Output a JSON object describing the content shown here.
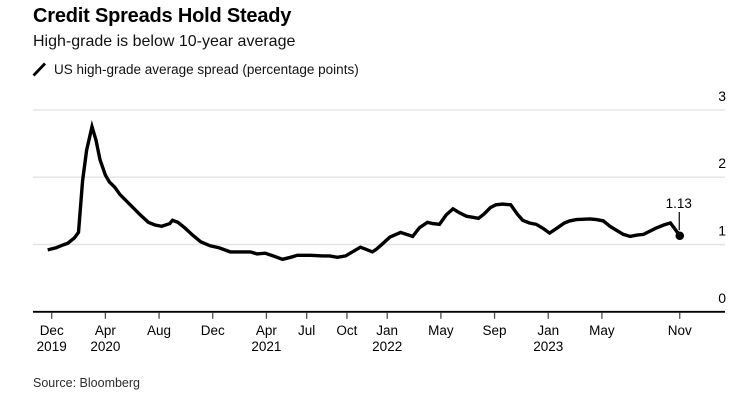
{
  "header": {
    "title": "Credit Spreads Hold Steady",
    "subtitle": "High-grade is below 10-year average",
    "legend_label": "US high-grade average spread (percentage points)"
  },
  "footer": {
    "source": "Source: Bloomberg"
  },
  "colors": {
    "line": "#000000",
    "grid": "#e3e3e3",
    "axis": "#000000",
    "tick": "#4d4d4d",
    "text": "#000000"
  },
  "chart_data": {
    "type": "line",
    "title": "Credit Spreads Hold Steady",
    "subtitle": "High-grade is below 10-year average",
    "series_name": "US high-grade average spread (percentage points)",
    "x_unit": "months since Dec 2019",
    "x_range_note": "Nov 2019 through Nov 2023",
    "ylim": [
      0,
      3
    ],
    "yticks": [
      0,
      1,
      2,
      3
    ],
    "ylabel_side": "right",
    "grid": true,
    "legend_position": "top-left",
    "xticks": [
      {
        "m": 0,
        "label": "Dec",
        "year": "2019"
      },
      {
        "m": 4,
        "label": "Apr",
        "year": "2020"
      },
      {
        "m": 8,
        "label": "Aug"
      },
      {
        "m": 12,
        "label": "Dec"
      },
      {
        "m": 16,
        "label": "Apr",
        "year": "2021"
      },
      {
        "m": 19,
        "label": "Jul"
      },
      {
        "m": 22,
        "label": "Oct"
      },
      {
        "m": 25,
        "label": "Jan",
        "year": "2022"
      },
      {
        "m": 29,
        "label": "May"
      },
      {
        "m": 33,
        "label": "Sep"
      },
      {
        "m": 37,
        "label": "Jan",
        "year": "2023"
      },
      {
        "m": 41,
        "label": "May"
      },
      {
        "m": 46.8,
        "label": "Nov"
      }
    ],
    "points": [
      [
        -0.3,
        0.92
      ],
      [
        0.3,
        0.95
      ],
      [
        0.8,
        0.99
      ],
      [
        1.2,
        1.02
      ],
      [
        1.7,
        1.1
      ],
      [
        2.0,
        1.18
      ],
      [
        2.3,
        1.95
      ],
      [
        2.6,
        2.4
      ],
      [
        3.0,
        2.75
      ],
      [
        3.3,
        2.55
      ],
      [
        3.6,
        2.26
      ],
      [
        4.0,
        2.03
      ],
      [
        4.3,
        1.93
      ],
      [
        4.7,
        1.85
      ],
      [
        5.1,
        1.74
      ],
      [
        5.5,
        1.66
      ],
      [
        6.1,
        1.54
      ],
      [
        6.6,
        1.44
      ],
      [
        7.2,
        1.33
      ],
      [
        7.7,
        1.29
      ],
      [
        8.2,
        1.27
      ],
      [
        8.8,
        1.31
      ],
      [
        9.0,
        1.36
      ],
      [
        9.4,
        1.33
      ],
      [
        9.9,
        1.25
      ],
      [
        10.5,
        1.14
      ],
      [
        11.1,
        1.04
      ],
      [
        11.8,
        0.98
      ],
      [
        12.5,
        0.95
      ],
      [
        13.3,
        0.89
      ],
      [
        14.0,
        0.89
      ],
      [
        14.8,
        0.89
      ],
      [
        15.3,
        0.86
      ],
      [
        15.9,
        0.87
      ],
      [
        16.5,
        0.83
      ],
      [
        17.2,
        0.78
      ],
      [
        17.8,
        0.81
      ],
      [
        18.3,
        0.84
      ],
      [
        19.3,
        0.84
      ],
      [
        20.2,
        0.83
      ],
      [
        20.7,
        0.83
      ],
      [
        21.3,
        0.81
      ],
      [
        21.9,
        0.83
      ],
      [
        22.4,
        0.89
      ],
      [
        23.0,
        0.96
      ],
      [
        23.4,
        0.93
      ],
      [
        23.9,
        0.89
      ],
      [
        24.2,
        0.93
      ],
      [
        24.7,
        1.02
      ],
      [
        25.2,
        1.11
      ],
      [
        26.0,
        1.18
      ],
      [
        26.3,
        1.16
      ],
      [
        26.9,
        1.12
      ],
      [
        27.4,
        1.25
      ],
      [
        28.0,
        1.33
      ],
      [
        28.4,
        1.31
      ],
      [
        28.9,
        1.3
      ],
      [
        29.4,
        1.44
      ],
      [
        29.9,
        1.53
      ],
      [
        30.4,
        1.47
      ],
      [
        30.9,
        1.42
      ],
      [
        31.8,
        1.39
      ],
      [
        32.2,
        1.45
      ],
      [
        32.7,
        1.55
      ],
      [
        33.1,
        1.59
      ],
      [
        33.6,
        1.6
      ],
      [
        34.2,
        1.59
      ],
      [
        34.7,
        1.45
      ],
      [
        35.1,
        1.36
      ],
      [
        35.6,
        1.32
      ],
      [
        36.1,
        1.3
      ],
      [
        36.6,
        1.24
      ],
      [
        37.1,
        1.17
      ],
      [
        37.7,
        1.25
      ],
      [
        38.2,
        1.32
      ],
      [
        38.6,
        1.35
      ],
      [
        39.1,
        1.37
      ],
      [
        40.1,
        1.38
      ],
      [
        40.6,
        1.37
      ],
      [
        41.1,
        1.35
      ],
      [
        41.6,
        1.27
      ],
      [
        42.1,
        1.21
      ],
      [
        42.6,
        1.15
      ],
      [
        43.1,
        1.12
      ],
      [
        43.6,
        1.14
      ],
      [
        44.1,
        1.15
      ],
      [
        44.6,
        1.2
      ],
      [
        45.0,
        1.24
      ],
      [
        45.6,
        1.29
      ],
      [
        46.1,
        1.32
      ],
      [
        46.4,
        1.24
      ],
      [
        46.8,
        1.13
      ]
    ],
    "last_point_value": 1.13,
    "last_point_label": "1.13"
  }
}
